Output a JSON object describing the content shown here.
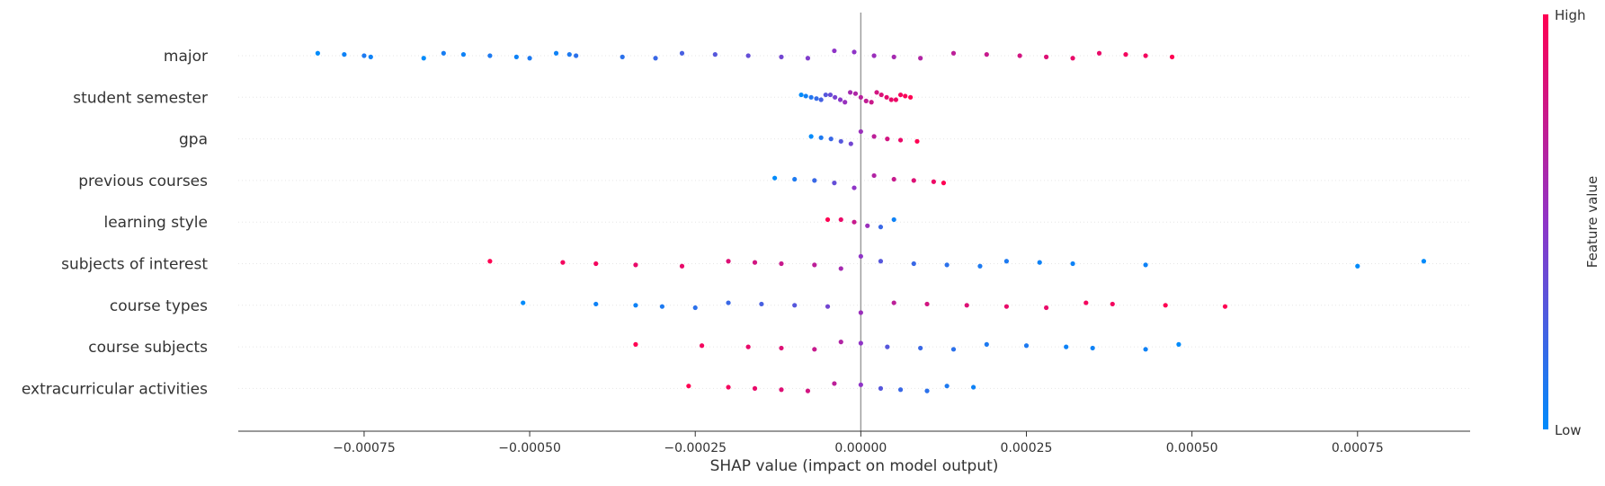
{
  "chart_data": {
    "type": "scatter",
    "title": "",
    "xlabel": "SHAP value (impact on model output)",
    "ylabel": "",
    "xlim": [
      -0.00094,
      0.00092
    ],
    "xticks": [
      {
        "value": -0.00075,
        "label": "−0.00075"
      },
      {
        "value": -0.0005,
        "label": "−0.00050"
      },
      {
        "value": -0.00025,
        "label": "−0.00025"
      },
      {
        "value": 0.0,
        "label": "0.00000"
      },
      {
        "value": 0.00025,
        "label": "0.00025"
      },
      {
        "value": 0.0005,
        "label": "0.00050"
      },
      {
        "value": 0.00075,
        "label": "0.00075"
      }
    ],
    "colorbar": {
      "title": "Feature value",
      "high_label": "High",
      "low_label": "Low",
      "low_color": "#008bfb",
      "high_color": "#ff0052"
    },
    "features": [
      {
        "name": "major",
        "points": [
          [
            -0.00082,
            0.0
          ],
          [
            -0.00078,
            0.05
          ],
          [
            -0.00075,
            0.1
          ],
          [
            -0.00074,
            0.05
          ],
          [
            -0.00066,
            0.0
          ],
          [
            -0.00063,
            0.08
          ],
          [
            -0.0006,
            0.05
          ],
          [
            -0.00056,
            0.1
          ],
          [
            -0.00052,
            0.05
          ],
          [
            -0.0005,
            0.1
          ],
          [
            -0.00046,
            0.05
          ],
          [
            -0.00044,
            0.1
          ],
          [
            -0.00043,
            0.15
          ],
          [
            -0.00036,
            0.15
          ],
          [
            -0.00031,
            0.2
          ],
          [
            -0.00027,
            0.25
          ],
          [
            -0.00022,
            0.3
          ],
          [
            -0.00017,
            0.35
          ],
          [
            -0.00012,
            0.4
          ],
          [
            -8e-05,
            0.45
          ],
          [
            -4e-05,
            0.5
          ],
          [
            -1e-05,
            0.5
          ],
          [
            2e-05,
            0.55
          ],
          [
            5e-05,
            0.6
          ],
          [
            9e-05,
            0.65
          ],
          [
            0.00014,
            0.7
          ],
          [
            0.00019,
            0.75
          ],
          [
            0.00024,
            0.8
          ],
          [
            0.00028,
            0.85
          ],
          [
            0.00032,
            0.9
          ],
          [
            0.00036,
            0.9
          ],
          [
            0.0004,
            0.95
          ],
          [
            0.00043,
            0.95
          ],
          [
            0.00047,
            1.0
          ]
        ]
      },
      {
        "name": "student semester",
        "points": [
          [
            -9e-05,
            0.0
          ],
          [
            -8.3e-05,
            0.06
          ],
          [
            -7.5e-05,
            0.12
          ],
          [
            -6.7e-05,
            0.18
          ],
          [
            -6e-05,
            0.24
          ],
          [
            -5.3e-05,
            0.3
          ],
          [
            -4.6e-05,
            0.36
          ],
          [
            -3.9e-05,
            0.42
          ],
          [
            -3.1e-05,
            0.48
          ],
          [
            -2.4e-05,
            0.54
          ],
          [
            -1.6e-05,
            0.6
          ],
          [
            -8e-06,
            0.64
          ],
          [
            0.0,
            0.68
          ],
          [
            8e-06,
            0.72
          ],
          [
            1.6e-05,
            0.76
          ],
          [
            2.4e-05,
            0.8
          ],
          [
            3.1e-05,
            0.84
          ],
          [
            3.9e-05,
            0.88
          ],
          [
            4.6e-05,
            0.9
          ],
          [
            5.3e-05,
            0.92
          ],
          [
            6e-05,
            0.95
          ],
          [
            6.7e-05,
            0.98
          ],
          [
            7.5e-05,
            1.0
          ]
        ]
      },
      {
        "name": "gpa",
        "points": [
          [
            -7.5e-05,
            0.0
          ],
          [
            -6e-05,
            0.1
          ],
          [
            -4.5e-05,
            0.2
          ],
          [
            -3e-05,
            0.3
          ],
          [
            -1.5e-05,
            0.4
          ],
          [
            0.0,
            0.55
          ],
          [
            2e-05,
            0.7
          ],
          [
            4e-05,
            0.8
          ],
          [
            6e-05,
            0.9
          ],
          [
            8.5e-05,
            1.0
          ]
        ]
      },
      {
        "name": "previous courses",
        "points": [
          [
            -0.00013,
            0.0
          ],
          [
            -0.0001,
            0.1
          ],
          [
            -7e-05,
            0.2
          ],
          [
            -4e-05,
            0.35
          ],
          [
            -1e-05,
            0.5
          ],
          [
            2e-05,
            0.65
          ],
          [
            5e-05,
            0.75
          ],
          [
            8e-05,
            0.85
          ],
          [
            0.00011,
            0.92
          ],
          [
            0.000125,
            1.0
          ]
        ]
      },
      {
        "name": "learning style",
        "points": [
          [
            -5e-05,
            1.0
          ],
          [
            -3e-05,
            0.9
          ],
          [
            -1e-05,
            0.75
          ],
          [
            1e-05,
            0.55
          ],
          [
            3e-05,
            0.2
          ],
          [
            5e-05,
            0.05
          ]
        ]
      },
      {
        "name": "subjects of interest",
        "points": [
          [
            -0.00056,
            1.0
          ],
          [
            -0.00045,
            0.95
          ],
          [
            -0.0004,
            0.95
          ],
          [
            -0.00034,
            0.9
          ],
          [
            -0.00027,
            0.9
          ],
          [
            -0.0002,
            0.85
          ],
          [
            -0.00016,
            0.8
          ],
          [
            -0.00012,
            0.75
          ],
          [
            -7e-05,
            0.7
          ],
          [
            -3e-05,
            0.6
          ],
          [
            0.0,
            0.5
          ],
          [
            3e-05,
            0.3
          ],
          [
            8e-05,
            0.2
          ],
          [
            0.00013,
            0.15
          ],
          [
            0.00018,
            0.1
          ],
          [
            0.00022,
            0.1
          ],
          [
            0.00027,
            0.05
          ],
          [
            0.00032,
            0.05
          ],
          [
            0.00043,
            0.05
          ],
          [
            0.00075,
            0.0
          ],
          [
            0.00085,
            0.0
          ]
        ]
      },
      {
        "name": "course types",
        "points": [
          [
            -0.00051,
            0.0
          ],
          [
            -0.0004,
            0.05
          ],
          [
            -0.00034,
            0.05
          ],
          [
            -0.0003,
            0.1
          ],
          [
            -0.00025,
            0.15
          ],
          [
            -0.0002,
            0.2
          ],
          [
            -0.00015,
            0.25
          ],
          [
            -0.0001,
            0.3
          ],
          [
            -5e-05,
            0.4
          ],
          [
            0.0,
            0.55
          ],
          [
            5e-05,
            0.7
          ],
          [
            0.0001,
            0.8
          ],
          [
            0.00016,
            0.85
          ],
          [
            0.00022,
            0.9
          ],
          [
            0.00028,
            0.9
          ],
          [
            0.00034,
            0.95
          ],
          [
            0.00038,
            0.95
          ],
          [
            0.00046,
            1.0
          ],
          [
            0.00055,
            1.0
          ]
        ]
      },
      {
        "name": "course subjects",
        "points": [
          [
            -0.00034,
            1.0
          ],
          [
            -0.00024,
            0.95
          ],
          [
            -0.00017,
            0.9
          ],
          [
            -0.00012,
            0.85
          ],
          [
            -7e-05,
            0.75
          ],
          [
            -3e-05,
            0.65
          ],
          [
            0.0,
            0.5
          ],
          [
            4e-05,
            0.3
          ],
          [
            9e-05,
            0.2
          ],
          [
            0.00014,
            0.15
          ],
          [
            0.00019,
            0.1
          ],
          [
            0.00025,
            0.1
          ],
          [
            0.00031,
            0.05
          ],
          [
            0.00035,
            0.05
          ],
          [
            0.00043,
            0.05
          ],
          [
            0.00048,
            0.0
          ]
        ]
      },
      {
        "name": "extracurricular activities",
        "points": [
          [
            -0.00026,
            1.0
          ],
          [
            -0.0002,
            0.95
          ],
          [
            -0.00016,
            0.9
          ],
          [
            -0.00012,
            0.85
          ],
          [
            -8e-05,
            0.8
          ],
          [
            -4e-05,
            0.7
          ],
          [
            0.0,
            0.5
          ],
          [
            3e-05,
            0.3
          ],
          [
            6e-05,
            0.2
          ],
          [
            0.0001,
            0.15
          ],
          [
            0.00013,
            0.1
          ],
          [
            0.00017,
            0.05
          ]
        ]
      }
    ]
  }
}
